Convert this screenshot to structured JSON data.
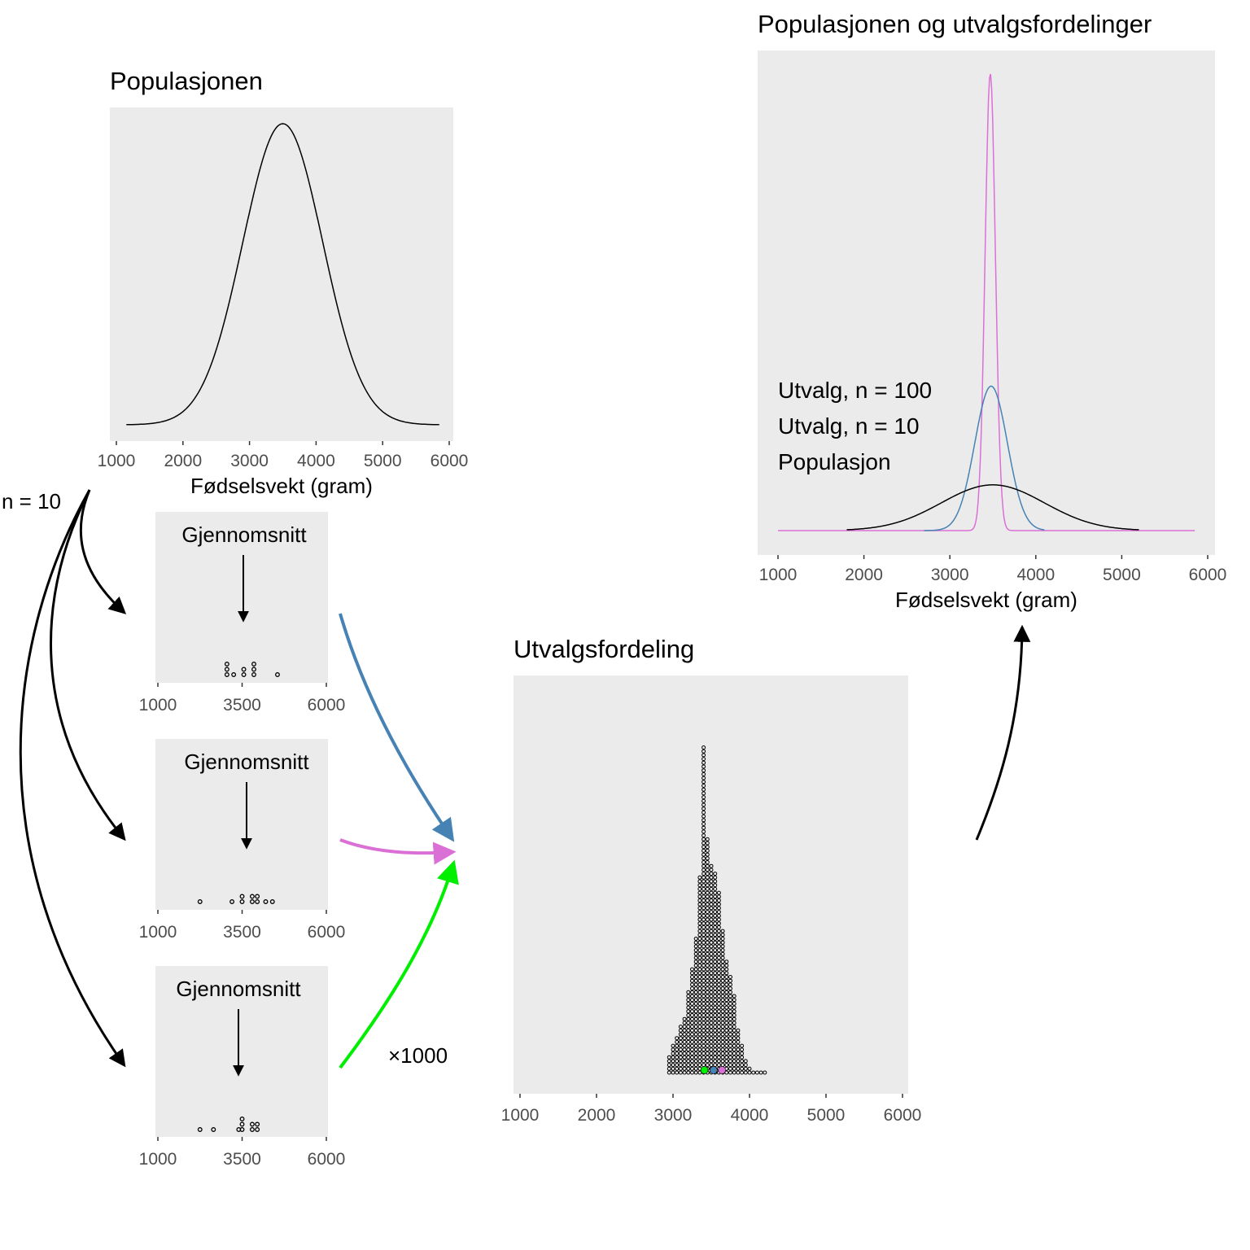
{
  "annotations": {
    "n_label": "n = 10",
    "repeat_label": "×1000",
    "mean_label": "Gjennomsnitt"
  },
  "colors": {
    "panel_bg": "#ebebeb",
    "population": "#000000",
    "n10": "#4682b4",
    "n100": "#da70d6",
    "highlight_green": "#00ee00"
  },
  "chart_data": [
    {
      "id": "population",
      "type": "line",
      "title": "Populasjonen",
      "xlabel": "Fødselsvekt (gram)",
      "ylabel": "",
      "xlim": [
        1000,
        6000
      ],
      "xticks": [
        1000,
        2000,
        3000,
        4000,
        5000,
        6000
      ],
      "distribution": {
        "kind": "normal",
        "mean": 3500,
        "sd": 600,
        "x_range": [
          1150,
          5850
        ]
      }
    },
    {
      "id": "sample1",
      "type": "scatter",
      "title": "",
      "xlim": [
        1000,
        6000
      ],
      "xticks": [
        1000,
        3500,
        6000
      ],
      "label": "Gjennomsnitt",
      "points": [
        {
          "x": 3050,
          "stack": 0
        },
        {
          "x": 3050,
          "stack": 1
        },
        {
          "x": 3050,
          "stack": 2
        },
        {
          "x": 3250,
          "stack": 0
        },
        {
          "x": 3550,
          "stack": 0
        },
        {
          "x": 3550,
          "stack": 1
        },
        {
          "x": 3850,
          "stack": 0
        },
        {
          "x": 3850,
          "stack": 1
        },
        {
          "x": 3850,
          "stack": 2
        },
        {
          "x": 4550,
          "stack": 0
        }
      ]
    },
    {
      "id": "sample2",
      "type": "scatter",
      "title": "",
      "xlim": [
        1000,
        6000
      ],
      "xticks": [
        1000,
        3500,
        6000
      ],
      "label": "Gjennomsnitt",
      "points": [
        {
          "x": 2250,
          "stack": 0
        },
        {
          "x": 3200,
          "stack": 0
        },
        {
          "x": 3500,
          "stack": 0
        },
        {
          "x": 3500,
          "stack": 1
        },
        {
          "x": 3800,
          "stack": 0
        },
        {
          "x": 3800,
          "stack": 1
        },
        {
          "x": 3950,
          "stack": 0
        },
        {
          "x": 3950,
          "stack": 1
        },
        {
          "x": 4200,
          "stack": 0
        },
        {
          "x": 4400,
          "stack": 0
        }
      ]
    },
    {
      "id": "sample3",
      "type": "scatter",
      "title": "",
      "xlim": [
        1000,
        6000
      ],
      "xticks": [
        1000,
        3500,
        6000
      ],
      "label": "Gjennomsnitt",
      "points": [
        {
          "x": 2250,
          "stack": 0
        },
        {
          "x": 2650,
          "stack": 0
        },
        {
          "x": 3400,
          "stack": 0
        },
        {
          "x": 3500,
          "stack": 0
        },
        {
          "x": 3500,
          "stack": 1
        },
        {
          "x": 3500,
          "stack": 2
        },
        {
          "x": 3800,
          "stack": 0
        },
        {
          "x": 3800,
          "stack": 1
        },
        {
          "x": 3950,
          "stack": 0
        },
        {
          "x": 3950,
          "stack": 1
        }
      ]
    },
    {
      "id": "sampling",
      "type": "scatter",
      "title": "Utvalgsfordeling",
      "xlim": [
        1000,
        6000
      ],
      "xticks": [
        1000,
        2000,
        3000,
        4000,
        5000,
        6000
      ],
      "dotplot_bins": {
        "bin_centers": [
          2950,
          3000,
          3050,
          3100,
          3150,
          3200,
          3250,
          3300,
          3350,
          3400,
          3450,
          3500,
          3550,
          3600,
          3650,
          3700,
          3750,
          3800,
          3850,
          3900,
          3950,
          4000,
          4050,
          4100,
          4150,
          4200
        ],
        "counts": [
          5,
          8,
          10,
          13,
          15,
          22,
          28,
          36,
          52,
          86,
          62,
          55,
          53,
          48,
          38,
          30,
          26,
          21,
          12,
          8,
          4,
          2,
          1,
          1,
          1,
          1
        ]
      },
      "highlighted_means": [
        {
          "x": 3410,
          "color": "#00ee00"
        },
        {
          "x": 3530,
          "color": "#4682b4"
        },
        {
          "x": 3640,
          "color": "#da70d6"
        }
      ]
    },
    {
      "id": "comparison",
      "type": "line",
      "title": "Populasjonen og utvalgsfordelinger",
      "xlabel": "Fødselsvekt (gram)",
      "xlim": [
        1000,
        6000
      ],
      "xticks": [
        1000,
        2000,
        3000,
        4000,
        5000,
        6000
      ],
      "legend_position": "left",
      "series": [
        {
          "name": "Utvalg, n = 100",
          "color": "#da70d6",
          "mean": 3470,
          "sd": 60,
          "x_range": [
            1000,
            5850
          ]
        },
        {
          "name": "Utvalg, n = 10",
          "color": "#4682b4",
          "mean": 3480,
          "sd": 190,
          "x_range": [
            2700,
            4100
          ]
        },
        {
          "name": "Populasjon",
          "color": "#000000",
          "mean": 3500,
          "sd": 600,
          "x_range": [
            1800,
            5200
          ]
        }
      ]
    }
  ]
}
